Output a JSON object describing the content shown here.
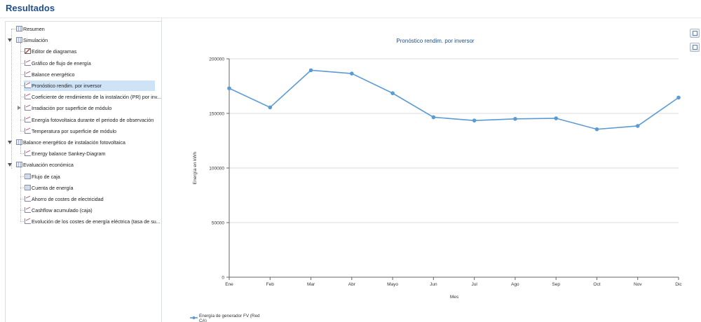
{
  "page": {
    "title": "Resultados"
  },
  "tree": {
    "items": [
      {
        "label": "Resumen",
        "level": 0,
        "icon": "table-icon",
        "expander": "none"
      },
      {
        "label": "Simulación",
        "level": 0,
        "icon": "table-icon",
        "expander": "open"
      },
      {
        "label": "Editor de diagramas",
        "level": 1,
        "icon": "edit-chart-icon",
        "expander": "none"
      },
      {
        "label": "Gráfico de flujo de energía",
        "level": 1,
        "icon": "chart-icon",
        "expander": "none"
      },
      {
        "label": "Balance energético",
        "level": 1,
        "icon": "chart-icon",
        "expander": "none"
      },
      {
        "label": "Pronóstico rendim. por inversor",
        "level": 1,
        "icon": "chart-icon",
        "expander": "none",
        "selected": true
      },
      {
        "label": "Coeficiente de rendimiento de la instalación (PR) por inv...",
        "level": 1,
        "icon": "chart-icon",
        "expander": "none"
      },
      {
        "label": "Irradiación por superficie de módulo",
        "level": 1,
        "icon": "chart-icon",
        "expander": "closed"
      },
      {
        "label": "Energía fotovoltaica durante el periodo de observación",
        "level": 1,
        "icon": "chart-icon",
        "expander": "none"
      },
      {
        "label": "Temperatura por superficie de módulo",
        "level": 1,
        "icon": "chart-icon",
        "expander": "none"
      },
      {
        "label": "Balance energético de instalación fotovoltaica",
        "level": 0,
        "icon": "table-icon",
        "expander": "open"
      },
      {
        "label": "Energy balance Sankey-Diagram",
        "level": 1,
        "icon": "chart-icon",
        "expander": "none"
      },
      {
        "label": "Evaluación económica",
        "level": 0,
        "icon": "table-icon",
        "expander": "open"
      },
      {
        "label": "Flujo de caja",
        "level": 1,
        "icon": "table-icon",
        "expander": "none"
      },
      {
        "label": "Cuenta de energía",
        "level": 1,
        "icon": "table-icon",
        "expander": "none"
      },
      {
        "label": "Ahorro de costes de electricidad",
        "level": 1,
        "icon": "chart-icon",
        "expander": "none"
      },
      {
        "label": "Cashflow acumulado (caja)",
        "level": 1,
        "icon": "chart-icon",
        "expander": "none"
      },
      {
        "label": "Evolución de los costes de energía eléctrica (tasa de su...",
        "level": 1,
        "icon": "chart-icon",
        "expander": "none"
      }
    ]
  },
  "toolbar": {
    "icons": [
      "export-chart-icon",
      "copy-icon"
    ]
  },
  "colors": {
    "title": "#1f4e8c",
    "series": "#5b9bd5",
    "selected_row": "#cfe3f7"
  },
  "chart_data": {
    "type": "line",
    "title": "Pronóstico rendim. por inversor",
    "xlabel": "Mes",
    "ylabel": "Energía en kWh",
    "categories": [
      "Ene",
      "Feb",
      "Mar",
      "Abr",
      "Mayo",
      "Jun",
      "Jul",
      "Ago",
      "Sep",
      "Oct",
      "Nov",
      "Dic"
    ],
    "series": [
      {
        "name": "Energía de generador FV (Red CA)",
        "values": [
          173000,
          155500,
          189500,
          186500,
          168500,
          146500,
          143500,
          145000,
          145500,
          135500,
          138500,
          164500
        ]
      }
    ],
    "ylim": [
      0,
      200000
    ],
    "yticks": [
      "0",
      "50000",
      "100000",
      "150000",
      "200000"
    ],
    "grid": true,
    "legend": "bottom-left"
  }
}
